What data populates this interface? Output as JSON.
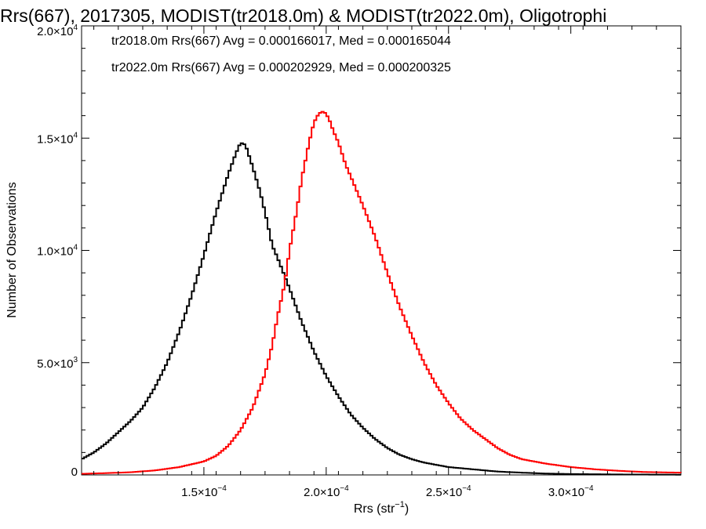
{
  "chart_data": {
    "type": "line",
    "title": "Rrs(667), 2017305, MODIST(tr2018.0m) & MODIST(tr2022.0m), Oligotrophi",
    "xlabel": {
      "base": "Rrs (str",
      "exp": "−1",
      "close": ")"
    },
    "ylabel": "Number of Observations",
    "xlim": [
      0.0001,
      0.000345
    ],
    "ylim": [
      0,
      20000
    ],
    "x_ticks": [
      {
        "value": 0.00015,
        "mant": "1.5×10",
        "exp": "−4"
      },
      {
        "value": 0.0002,
        "mant": "2.0×10",
        "exp": "−4"
      },
      {
        "value": 0.00025,
        "mant": "2.5×10",
        "exp": "−4"
      },
      {
        "value": 0.0003,
        "mant": "3.0×10",
        "exp": "−4"
      }
    ],
    "y_ticks": [
      {
        "value": 0,
        "mant": "0",
        "exp": ""
      },
      {
        "value": 5000,
        "mant": "5.0×10",
        "exp": "3"
      },
      {
        "value": 10000,
        "mant": "1.0×10",
        "exp": "4"
      },
      {
        "value": 15000,
        "mant": "1.5×10",
        "exp": "4"
      },
      {
        "value": 20000,
        "mant": "2.0×10",
        "exp": "4"
      }
    ],
    "grid": false,
    "legend": "top-left",
    "series": [
      {
        "name": "tr2018.0m",
        "label": "tr2018.0m Rrs(667) Avg = 0.000166017, Med = 0.000165044",
        "color": "#000000",
        "points": [
          [
            0.0001,
            700
          ],
          [
            0.000105,
            1000
          ],
          [
            0.00011,
            1400
          ],
          [
            0.000115,
            1900
          ],
          [
            0.00012,
            2400
          ],
          [
            0.000125,
            3000
          ],
          [
            0.00013,
            3900
          ],
          [
            0.000135,
            5000
          ],
          [
            0.00014,
            6400
          ],
          [
            0.000145,
            8000
          ],
          [
            0.00015,
            9800
          ],
          [
            0.000155,
            11700
          ],
          [
            0.00016,
            13400
          ],
          [
            0.000163,
            14300
          ],
          [
            0.000165,
            14800
          ],
          [
            0.000167,
            14700
          ],
          [
            0.00017,
            13700
          ],
          [
            0.000173,
            12600
          ],
          [
            0.000175,
            11700
          ],
          [
            0.000178,
            10200
          ],
          [
            0.00018,
            9700
          ],
          [
            0.000185,
            8300
          ],
          [
            0.00019,
            6800
          ],
          [
            0.000195,
            5500
          ],
          [
            0.0002,
            4400
          ],
          [
            0.000205,
            3500
          ],
          [
            0.00021,
            2700
          ],
          [
            0.000215,
            2100
          ],
          [
            0.00022,
            1600
          ],
          [
            0.000225,
            1200
          ],
          [
            0.00023,
            900
          ],
          [
            0.000235,
            700
          ],
          [
            0.00024,
            550
          ],
          [
            0.00025,
            350
          ],
          [
            0.00026,
            250
          ],
          [
            0.00027,
            150
          ],
          [
            0.00028,
            100
          ],
          [
            0.00029,
            60
          ],
          [
            0.0003,
            40
          ],
          [
            0.00032,
            20
          ],
          [
            0.000345,
            10
          ]
        ]
      },
      {
        "name": "tr2022.0m",
        "label": "tr2022.0m Rrs(667) Avg = 0.000202929, Med = 0.000200325",
        "color": "#ff0000",
        "points": [
          [
            0.0001,
            50
          ],
          [
            0.00011,
            80
          ],
          [
            0.00012,
            120
          ],
          [
            0.00013,
            200
          ],
          [
            0.00014,
            350
          ],
          [
            0.00015,
            600
          ],
          [
            0.000155,
            850
          ],
          [
            0.00016,
            1300
          ],
          [
            0.000165,
            2000
          ],
          [
            0.00017,
            3000
          ],
          [
            0.000175,
            4500
          ],
          [
            0.000178,
            5800
          ],
          [
            0.00018,
            7000
          ],
          [
            0.000183,
            8500
          ],
          [
            0.000185,
            10000
          ],
          [
            0.000188,
            11800
          ],
          [
            0.00019,
            13200
          ],
          [
            0.000193,
            14800
          ],
          [
            0.000195,
            15700
          ],
          [
            0.000197,
            16100
          ],
          [
            0.000199,
            16200
          ],
          [
            0.000201,
            15900
          ],
          [
            0.000203,
            15300
          ],
          [
            0.000205,
            14800
          ],
          [
            0.000208,
            13800
          ],
          [
            0.00021,
            13300
          ],
          [
            0.000215,
            12000
          ],
          [
            0.00022,
            10600
          ],
          [
            0.000225,
            9000
          ],
          [
            0.00023,
            7500
          ],
          [
            0.000235,
            6200
          ],
          [
            0.00024,
            5000
          ],
          [
            0.000245,
            4000
          ],
          [
            0.00025,
            3200
          ],
          [
            0.000255,
            2500
          ],
          [
            0.00026,
            2000
          ],
          [
            0.000265,
            1600
          ],
          [
            0.00027,
            1200
          ],
          [
            0.000275,
            900
          ],
          [
            0.00028,
            700
          ],
          [
            0.00029,
            500
          ],
          [
            0.0003,
            350
          ],
          [
            0.00031,
            250
          ],
          [
            0.00032,
            180
          ],
          [
            0.00033,
            130
          ],
          [
            0.000345,
            100
          ]
        ]
      }
    ]
  }
}
